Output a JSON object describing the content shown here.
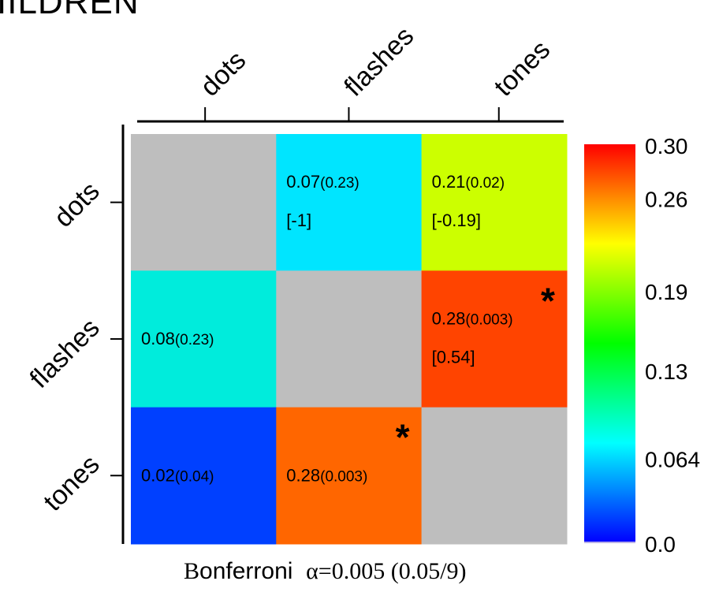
{
  "top_title": "IILDREN",
  "chart_data": {
    "type": "heatmap",
    "rows": [
      "dots",
      "flashes",
      "tones"
    ],
    "columns": [
      "dots",
      "flashes",
      "tones"
    ],
    "cells": [
      [
        {
          "value": null,
          "color": "#bebebe"
        },
        {
          "value": 0.07,
          "label": "0.07",
          "p_label": "(0.23)",
          "bracket": "[-1]",
          "color": "#00e5ff",
          "significant": false
        },
        {
          "value": 0.21,
          "label": "0.21",
          "p_label": "(0.02)",
          "bracket": "[-0.19]",
          "color": "#ccff00",
          "significant": false
        }
      ],
      [
        {
          "value": 0.08,
          "label": "0.08",
          "p_label": "(0.23)",
          "bracket": "",
          "color": "#00ecdc",
          "significant": false
        },
        {
          "value": null,
          "color": "#bebebe"
        },
        {
          "value": 0.28,
          "label": "0.28",
          "p_label": "(0.003)",
          "bracket": "[0.54]",
          "color": "#ff4400",
          "significant": true
        }
      ],
      [
        {
          "value": 0.02,
          "label": "0.02",
          "p_label": "(0.04)",
          "bracket": "",
          "color": "#0040ff",
          "significant": false
        },
        {
          "value": 0.28,
          "label": "0.28",
          "p_label": "(0.003)",
          "bracket": "",
          "color": "#ff6600",
          "significant": true
        },
        {
          "value": null,
          "color": "#bebebe"
        }
      ]
    ],
    "colorbar": {
      "range": [
        0.0,
        0.3
      ],
      "ticks": [
        {
          "value": 0.3,
          "label": "0.30"
        },
        {
          "value": 0.26,
          "label": "0.26"
        },
        {
          "value": 0.19,
          "label": "0.19"
        },
        {
          "value": 0.13,
          "label": "0.13"
        },
        {
          "value": 0.064,
          "label": "0.064"
        },
        {
          "value": 0.0,
          "label": "0.0"
        }
      ],
      "colors": [
        "#0000ff",
        "#0080ff",
        "#00ffff",
        "#00ff80",
        "#00ff00",
        "#80ff00",
        "#ffff00",
        "#ff8000",
        "#ff0000"
      ]
    },
    "significance_marker": "*"
  },
  "footer": {
    "b": "B",
    "onferroni": "onferroni",
    "alpha": "α=0.005 (0.05/9)"
  }
}
